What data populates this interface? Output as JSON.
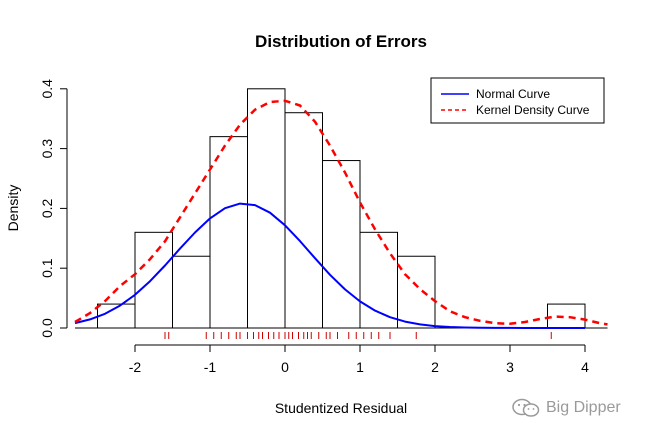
{
  "chart_data": {
    "type": "histogram",
    "title": "Distribution of Errors",
    "xlabel": "Studentized Residual",
    "ylabel": "Density",
    "xlim": [
      -2.8,
      4.3
    ],
    "ylim": [
      0,
      0.4
    ],
    "x_ticks": [
      -2,
      -1,
      0,
      1,
      2,
      3,
      4
    ],
    "x_tick_labels": [
      "-2",
      "-1",
      "0",
      "1",
      "2",
      "3",
      "4"
    ],
    "y_ticks": [
      0.0,
      0.1,
      0.2,
      0.3,
      0.4
    ],
    "y_tick_labels": [
      "0.0",
      "0.1",
      "0.2",
      "0.3",
      "0.4"
    ],
    "grid": false,
    "histogram": {
      "bin_width": 0.5,
      "bins": [
        {
          "start": -2.5,
          "end": -2.0,
          "density": 0.04
        },
        {
          "start": -2.0,
          "end": -1.5,
          "density": 0.16
        },
        {
          "start": -1.5,
          "end": -1.0,
          "density": 0.12
        },
        {
          "start": -1.0,
          "end": -0.5,
          "density": 0.32
        },
        {
          "start": -0.5,
          "end": 0.0,
          "density": 0.4
        },
        {
          "start": 0.0,
          "end": 0.5,
          "density": 0.36
        },
        {
          "start": 0.5,
          "end": 1.0,
          "density": 0.28
        },
        {
          "start": 1.0,
          "end": 1.5,
          "density": 0.16
        },
        {
          "start": 1.5,
          "end": 2.0,
          "density": 0.12
        },
        {
          "start": 2.0,
          "end": 2.5,
          "density": 0.0
        },
        {
          "start": 2.5,
          "end": 3.0,
          "density": 0.0
        },
        {
          "start": 3.0,
          "end": 3.5,
          "density": 0.0
        },
        {
          "start": 3.5,
          "end": 4.0,
          "density": 0.04
        }
      ]
    },
    "series": [
      {
        "name": "Normal Curve",
        "color": "#0000ff",
        "line_style": "solid",
        "x": [
          -2.8,
          -2.6,
          -2.4,
          -2.2,
          -2.0,
          -1.8,
          -1.6,
          -1.4,
          -1.2,
          -1.0,
          -0.8,
          -0.6,
          -0.4,
          -0.2,
          0.0,
          0.2,
          0.4,
          0.6,
          0.8,
          1.0,
          1.2,
          1.4,
          1.6,
          1.8,
          2.0,
          2.2,
          2.4,
          2.6,
          2.8,
          3.0,
          3.2,
          3.4,
          3.6,
          3.8,
          4.0
        ],
        "y": [
          0.0082,
          0.0144,
          0.0238,
          0.0374,
          0.0555,
          0.0782,
          0.1045,
          0.1327,
          0.1597,
          0.1832,
          0.2003,
          0.2081,
          0.2055,
          0.1928,
          0.1718,
          0.1453,
          0.1167,
          0.089,
          0.0645,
          0.0444,
          0.0291,
          0.0181,
          0.0107,
          0.006,
          0.0032,
          0.0016,
          0.0008,
          0.0004,
          0.0002,
          0.0001,
          0.0,
          0.0,
          0.0,
          0.0,
          0.0
        ]
      },
      {
        "name": "Kernel Density Curve",
        "color": "#ff0000",
        "line_style": "dashed",
        "x": [
          -2.8,
          -2.6,
          -2.4,
          -2.2,
          -2.0,
          -1.8,
          -1.6,
          -1.4,
          -1.2,
          -1.0,
          -0.8,
          -0.6,
          -0.4,
          -0.2,
          0.0,
          0.2,
          0.4,
          0.6,
          0.8,
          1.0,
          1.2,
          1.4,
          1.6,
          1.8,
          2.0,
          2.2,
          2.4,
          2.6,
          2.8,
          3.0,
          3.2,
          3.4,
          3.6,
          3.8,
          4.0,
          4.2,
          4.3
        ],
        "y": [
          0.01,
          0.025,
          0.045,
          0.07,
          0.09,
          0.115,
          0.145,
          0.185,
          0.225,
          0.265,
          0.305,
          0.34,
          0.365,
          0.378,
          0.38,
          0.372,
          0.345,
          0.305,
          0.26,
          0.21,
          0.165,
          0.125,
          0.09,
          0.065,
          0.045,
          0.028,
          0.018,
          0.012,
          0.008,
          0.007,
          0.01,
          0.015,
          0.019,
          0.018,
          0.014,
          0.008,
          0.006
        ]
      }
    ],
    "rug_color": "#cc0000",
    "rug": [
      -1.6,
      -1.55,
      -1.05,
      -0.95,
      -0.85,
      -0.75,
      -0.65,
      -0.6,
      -0.5,
      -0.42,
      -0.35,
      -0.3,
      -0.22,
      -0.15,
      -0.08,
      0.0,
      0.05,
      0.1,
      0.18,
      0.25,
      0.3,
      0.35,
      0.45,
      0.55,
      0.6,
      0.7,
      0.85,
      0.95,
      1.05,
      1.15,
      1.25,
      1.4,
      1.75,
      3.55
    ],
    "legend": {
      "placement": "top-right",
      "entries": [
        "Normal Curve",
        "Kernel Density Curve"
      ]
    }
  },
  "watermark": {
    "text": "Big Dipper",
    "icon": "wechat-icon"
  }
}
